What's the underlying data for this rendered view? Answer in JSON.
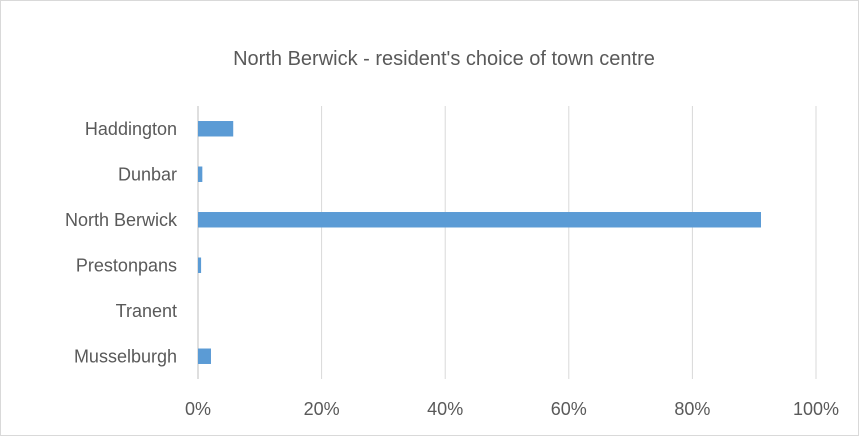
{
  "chart_data": {
    "type": "bar",
    "orientation": "horizontal",
    "title": "North Berwick - resident's choice of town centre",
    "categories": [
      "Haddington",
      "Dunbar",
      "North Berwick",
      "Prestonpans",
      "Tranent",
      "Musselburgh"
    ],
    "values": [
      0.057,
      0.007,
      0.911,
      0.005,
      0.0,
      0.021
    ],
    "xlim": [
      0,
      1
    ],
    "x_ticks": [
      0,
      0.2,
      0.4,
      0.6,
      0.8,
      1.0
    ],
    "x_tick_labels": [
      "0%",
      "20%",
      "40%",
      "60%",
      "80%",
      "100%"
    ],
    "grid": true,
    "legend": "none",
    "bar_color": "#5b9bd5"
  }
}
